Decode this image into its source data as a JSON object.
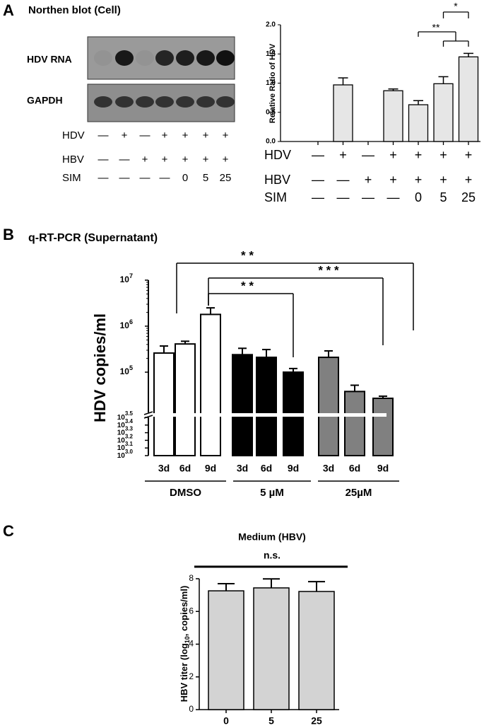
{
  "blot": {
    "panel_label": "A",
    "title": "Northen blot (Cell)",
    "bands": [
      "HDV RNA",
      "GAPDH"
    ],
    "conditions": [
      {
        "name": "HDV",
        "values": [
          "—",
          "+",
          "—",
          "+",
          "+",
          "+",
          "+"
        ]
      },
      {
        "name": "HBV",
        "values": [
          "—",
          "—",
          "+",
          "+",
          "+",
          "+",
          "+"
        ]
      },
      {
        "name": "SIM",
        "values": [
          "—",
          "—",
          "—",
          "—",
          "0",
          "5",
          "25"
        ]
      }
    ]
  },
  "chart_data": [
    {
      "type": "bar",
      "ylabel": "Relative Ratio of HDV",
      "values": [
        0,
        0.97,
        0,
        0.87,
        0.63,
        0.99,
        1.45
      ],
      "errors": [
        0,
        0.12,
        0,
        0.03,
        0.07,
        0.12,
        0.06
      ],
      "color": "#e6e6e6",
      "ylim": [
        0,
        2
      ],
      "yticks": [
        {
          "value": 0,
          "label": "0.0"
        },
        0.5,
        {
          "value": 1,
          "label": "1.0"
        },
        1.5,
        {
          "value": 2,
          "label": "2.0"
        }
      ],
      "conditions": [
        {
          "name": "HDV",
          "values": [
            "—",
            "+",
            "—",
            "+",
            "+",
            "+",
            "+"
          ]
        },
        {
          "name": "HBV",
          "values": [
            "—",
            "—",
            "+",
            "+",
            "+",
            "+",
            "+"
          ]
        },
        {
          "name": "SIM",
          "values": [
            "—",
            "—",
            "—",
            "—",
            "0",
            "5",
            "25"
          ]
        }
      ],
      "annotations": [
        "**",
        "*"
      ]
    },
    {
      "type": "bar",
      "panel_label": "B",
      "title": "q-RT-PCR (Supernatant)",
      "ylabel": "HDV copies/ml",
      "log_scale": true,
      "ylim_lower": [
        1000,
        3162.3
      ],
      "ylim_upper": [
        13300,
        10000000
      ],
      "yticks": [
        {
          "value": 1000,
          "label": "10",
          "sup": "3.0"
        },
        {
          "value": 1258.9,
          "label": "10",
          "sup": "3.1"
        },
        {
          "value": 1584.9,
          "label": "10",
          "sup": "3.2"
        },
        {
          "value": 1995.3,
          "label": "10",
          "sup": "3.3"
        },
        {
          "value": 2511.9,
          "label": "10",
          "sup": "3.4"
        },
        {
          "value": 3162.3,
          "label": "10",
          "sup": "3.5"
        },
        {
          "value": 100000,
          "label": "10",
          "sup": "5"
        },
        {
          "value": 1000000,
          "label": "10",
          "sup": "6"
        },
        {
          "value": 10000000,
          "label": "10",
          "sup": "7"
        }
      ],
      "groups": [
        {
          "name": "DMSO",
          "color": "#ffffff",
          "categories": [
            "3d",
            "6d",
            "9d"
          ],
          "values": [
            260000,
            410000,
            1800000
          ],
          "errors": [
            110000,
            60000,
            700000
          ]
        },
        {
          "name": "5 µM",
          "color": "#000000",
          "categories": [
            "3d",
            "6d",
            "9d"
          ],
          "values": [
            240000,
            210000,
            100000
          ],
          "errors": [
            90000,
            100000,
            20000
          ]
        },
        {
          "name": "25µM",
          "color": "#808080",
          "categories": [
            "3d",
            "6d",
            "9d"
          ],
          "values": [
            210000,
            38000,
            27000
          ],
          "errors": [
            80000,
            14000,
            3000
          ]
        }
      ],
      "annotations": [
        "* *",
        "* * *",
        "* *"
      ]
    },
    {
      "type": "bar",
      "panel_label": "C",
      "title": "Medium (HBV)",
      "annotation": "n.s.",
      "ylabel": {
        "text": "HBV titer (log",
        "sub": "10",
        "tail": ", copies/ml)"
      },
      "categories": [
        "0",
        "5",
        "25"
      ],
      "values": [
        7.26,
        7.44,
        7.22
      ],
      "errors": [
        0.44,
        0.55,
        0.6
      ],
      "color": "#d3d3d3",
      "ylim": [
        0,
        8
      ],
      "yticks": [
        0,
        2,
        4,
        6,
        8
      ]
    }
  ]
}
